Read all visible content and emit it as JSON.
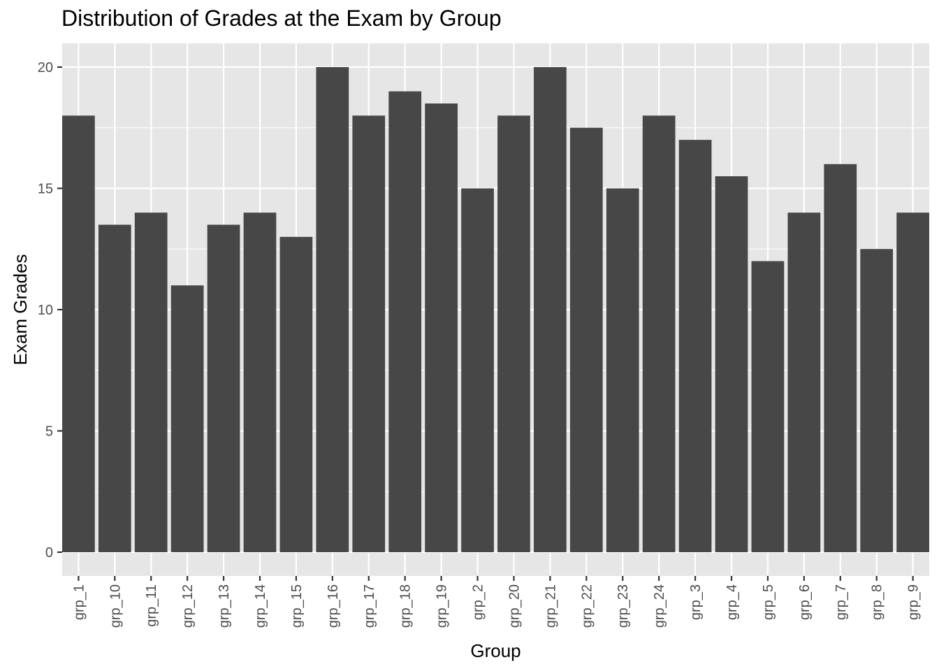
{
  "chart_data": {
    "type": "bar",
    "title": "Distribution of Grades at the Exam by Group",
    "xlabel": "Group",
    "ylabel": "Exam Grades",
    "categories": [
      "grp_1",
      "grp_10",
      "grp_11",
      "grp_12",
      "grp_13",
      "grp_14",
      "grp_15",
      "grp_16",
      "grp_17",
      "grp_18",
      "grp_19",
      "grp_2",
      "grp_20",
      "grp_21",
      "grp_22",
      "grp_23",
      "grp_24",
      "grp_3",
      "grp_4",
      "grp_5",
      "grp_6",
      "grp_7",
      "grp_8",
      "grp_9"
    ],
    "values": [
      18,
      13.5,
      14,
      11,
      13.5,
      14,
      13,
      20,
      18,
      19,
      18.5,
      15,
      18,
      20,
      17.5,
      15,
      18,
      17,
      15.5,
      12,
      14,
      16,
      12.5,
      14
    ],
    "ylim": [
      -1,
      21
    ],
    "yticks": [
      0,
      5,
      10,
      15,
      20
    ],
    "grid": true,
    "colors": {
      "bar": "#474747",
      "panel": "#e6e6e6",
      "grid": "#ffffff"
    }
  }
}
